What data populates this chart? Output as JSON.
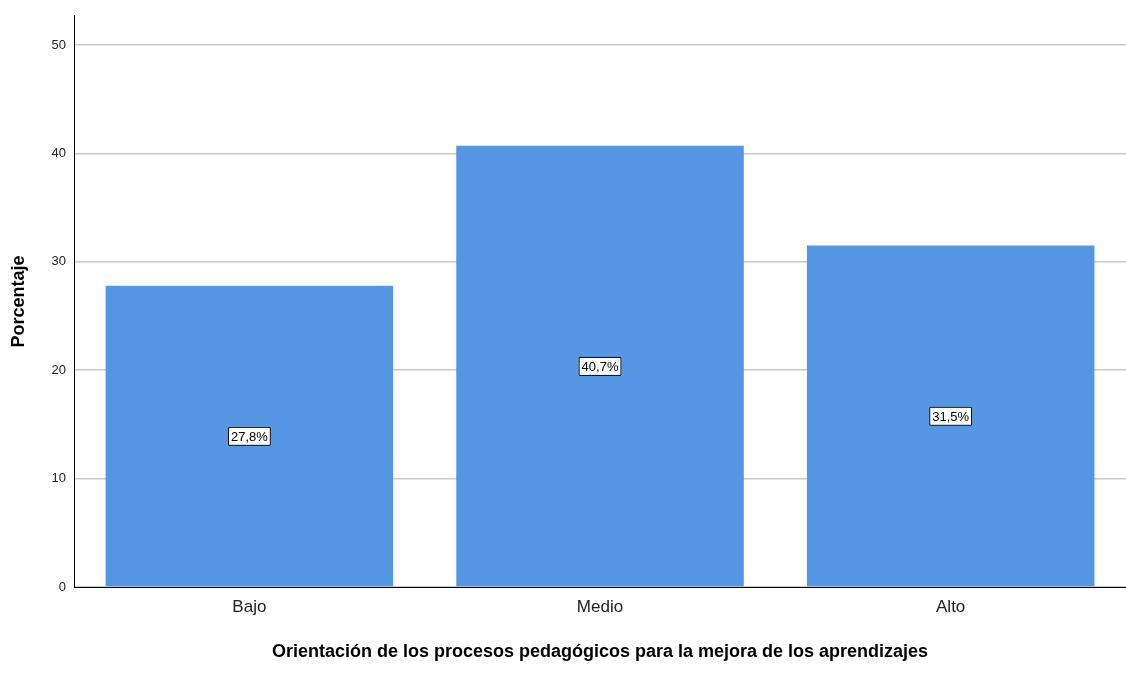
{
  "chart_data": {
    "type": "bar",
    "xlabel": "Orientación de los procesos pedagógicos para la mejora de los aprendizajes",
    "ylabel": "Porcentaje",
    "categories": [
      "Bajo",
      "Medio",
      "Alto"
    ],
    "series": [
      {
        "color": "#5597e3",
        "values": [
          27.8,
          40.7,
          31.5
        ],
        "value_labels": [
          "27,8%",
          "40,7%",
          "31,5%"
        ]
      }
    ],
    "ylim": [
      0,
      52.7
    ],
    "yticks": [
      0,
      10,
      20,
      30,
      40,
      50
    ],
    "grid": "y",
    "legend": false
  }
}
